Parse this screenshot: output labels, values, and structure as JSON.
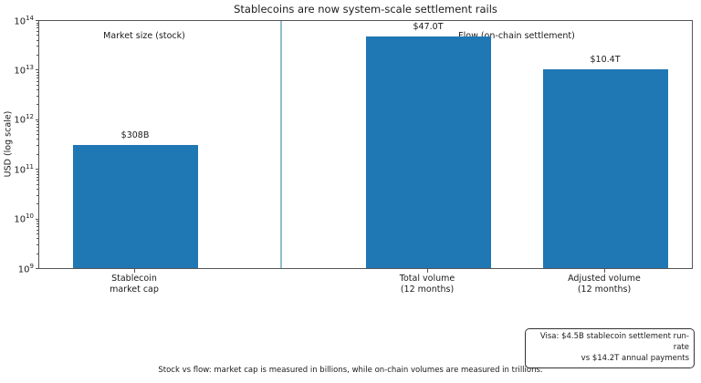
{
  "title": "Stablecoins are now system-scale settlement rails",
  "sections": {
    "left_label": "Market size (stock)",
    "right_label": "Flow (on-chain settlement)"
  },
  "chart_data": {
    "type": "bar",
    "title": "Stablecoins are now system-scale settlement rails",
    "ylabel": "USD (log scale)",
    "xlabel": "",
    "yscale": "log",
    "ylim": [
      1000000000,
      100000000000000
    ],
    "y_tick_exponents": [
      9,
      10,
      11,
      12,
      13,
      14
    ],
    "grid": false,
    "legend": "none",
    "categories": [
      "Stablecoin\nmarket cap",
      "Total volume\n(12 months)",
      "Adjusted volume\n(12 months)"
    ],
    "values": [
      308000000000,
      47000000000000,
      10400000000000
    ],
    "bar_labels": [
      "$308B",
      "$47.0T",
      "$10.4T"
    ],
    "bar_color": "#1f77b4",
    "separator_color": "#8fbfc9",
    "annotations": [
      "Market size (stock)",
      "Flow (on-chain settlement)"
    ]
  },
  "note_box": {
    "line1": "Visa: $4.5B stablecoin settlement run-rate",
    "line2": "vs $14.2T annual payments"
  },
  "caption": "Stock vs flow: market cap is measured in billions, while on-chain volumes are measured in trillions."
}
